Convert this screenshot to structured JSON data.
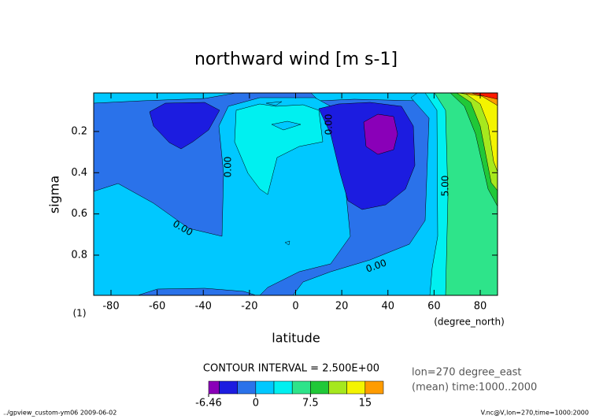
{
  "chart_data": {
    "type": "contour",
    "title": "northward wind [m s-1]",
    "x_label": "latitude",
    "x_unit": "(degree_north)",
    "y_label": "sigma",
    "y_unit": "(1)",
    "xlim": [
      -87.5,
      87.5
    ],
    "xticks": [
      -80,
      -60,
      -40,
      -20,
      0,
      20,
      40,
      60,
      80
    ],
    "ylim": [
      0.013,
      0.995
    ],
    "y_inverted": true,
    "yticks": [
      0.2,
      0.4,
      0.6,
      0.8
    ],
    "contour_labels": [
      "0.00",
      "0.00",
      "0.00",
      "0.00",
      "5.00"
    ],
    "contour_interval": "CONTOUR INTERVAL = 2.500E+00",
    "info": [
      "lon=270 degree_east",
      "(mean) time:1000..2000"
    ],
    "colorbar": {
      "levels": [
        -6.46,
        -5,
        -2.5,
        0,
        2.5,
        5,
        7.5,
        10,
        12.5,
        15,
        17.5
      ],
      "colors": [
        "#8a00b8",
        "#1c1ce0",
        "#2a72ea",
        "#00c8ff",
        "#00f0f0",
        "#2ee48a",
        "#20c838",
        "#a6e81e",
        "#f4f400",
        "#ff9c00"
      ],
      "over_color": "#ff1a00",
      "ticks": [
        -6.46,
        0,
        7.5,
        15
      ]
    },
    "footer_left": "../gpview_custom-ym06  2009-06-02",
    "footer_right": "V.nc@V,lon=270,time=1000:2000"
  }
}
